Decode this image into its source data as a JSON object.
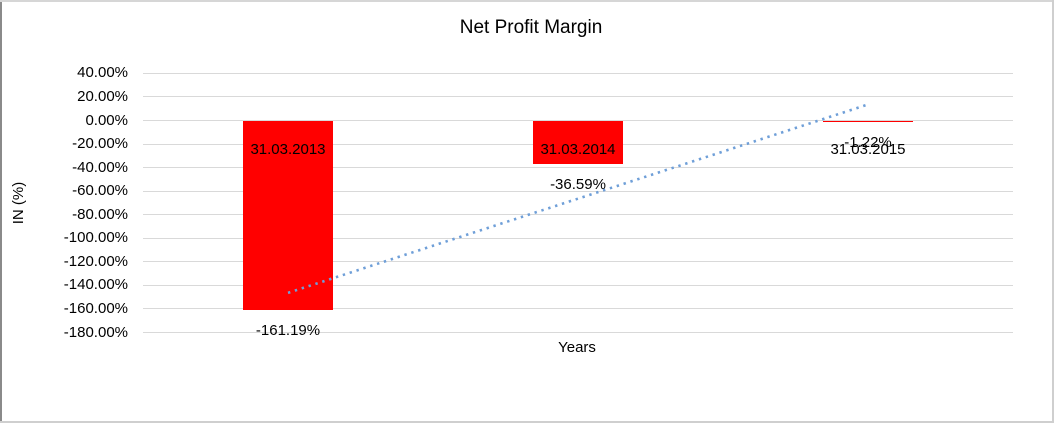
{
  "chart_data": {
    "type": "bar",
    "title": "Net Profit Margin",
    "xlabel": "Years",
    "ylabel": "IN (%)",
    "categories": [
      "31.03.2013",
      "31.03.2014",
      "31.03.2015"
    ],
    "values": [
      -161.19,
      -36.59,
      -1.22
    ],
    "value_labels": [
      "-161.19%",
      "-36.59%",
      "-1.22%"
    ],
    "ytick_labels": [
      "40.00%",
      "20.00%",
      "0.00%",
      "-20.00%",
      "-40.00%",
      "-60.00%",
      "-80.00%",
      "-100.00%",
      "-120.00%",
      "-140.00%",
      "-160.00%",
      "-180.00%"
    ],
    "ytick_values": [
      40,
      20,
      0,
      -20,
      -40,
      -60,
      -80,
      -100,
      -120,
      -140,
      -160,
      -180
    ],
    "ylim": [
      -180,
      40
    ],
    "grid": true,
    "legend": false,
    "bar_color": "#ff0000",
    "gridline_color": "#d9d9d9",
    "text_color": "#000000",
    "trendline": {
      "style": "dotted",
      "color": "#6f9fd8",
      "category_indexes": [
        0,
        2
      ],
      "values": [
        -146.3,
        13.6
      ]
    }
  },
  "frame": {
    "left_color": "#8a8a8a",
    "top_color": "#d6d6d6",
    "right_color": "#cfcfcf",
    "bottom_color": "#cfcfcf"
  }
}
